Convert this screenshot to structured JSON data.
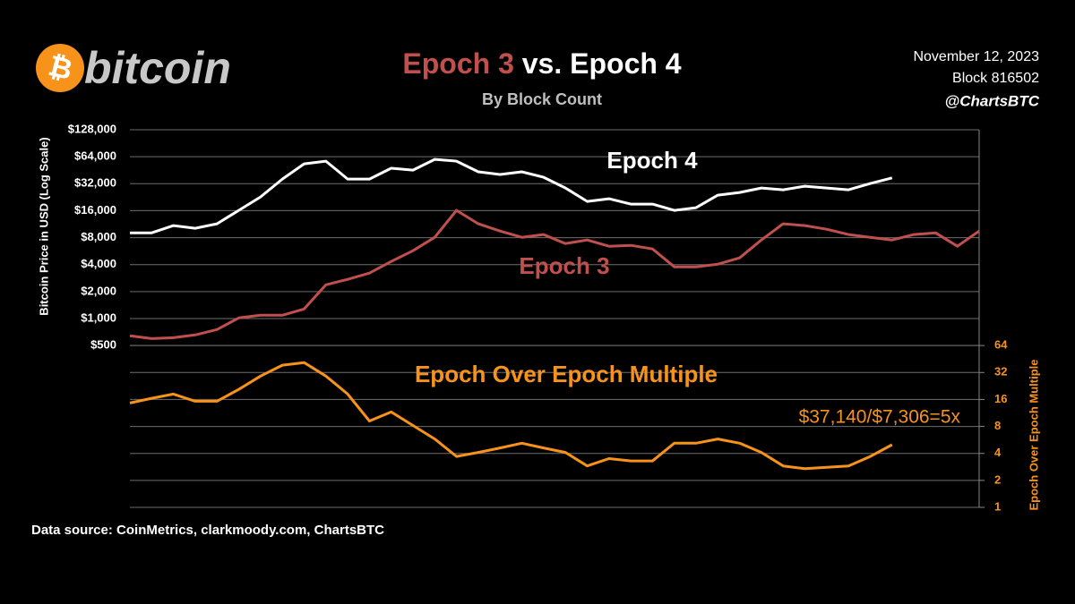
{
  "header": {
    "logo_symbol": "₿",
    "logo": "bitcoin",
    "date": "November 12, 2023",
    "block": "Block 816502",
    "handle": "@ChartsBTC",
    "source": "Data source: CoinMetrics, clarkmoody.com, ChartsBTC"
  },
  "chart_data": {
    "type": "line",
    "title_parts": [
      "Epoch 3",
      "vs.",
      "Epoch 4"
    ],
    "subtitle": "By Block Count",
    "ylabel": "Bitcoin Price in USD (Log Scale)",
    "y2label": "Epoch Over Epoch Multiple",
    "log_scale": true,
    "grid": true,
    "ylim": [
      7.8125,
      128000
    ],
    "yticks": [
      {
        "value": 128000,
        "label": "$128,000"
      },
      {
        "value": 64000,
        "label": "$64,000"
      },
      {
        "value": 32000,
        "label": "$32,000"
      },
      {
        "value": 16000,
        "label": "$16,000"
      },
      {
        "value": 8000,
        "label": "$8,000"
      },
      {
        "value": 4000,
        "label": "$4,000"
      },
      {
        "value": 2000,
        "label": "$2,000"
      },
      {
        "value": 1000,
        "label": "$1,000"
      },
      {
        "value": 500,
        "label": "$500"
      }
    ],
    "y2lim": [
      1,
      16384
    ],
    "y2ticks": [
      64,
      32,
      16,
      8,
      4,
      2,
      1
    ],
    "series": [
      {
        "name": "Epoch 4",
        "color": "#ffffff",
        "values": [
          9059,
          9059,
          10894,
          10167,
          11408,
          16120,
          22736,
          36056,
          53333,
          57143,
          36056,
          36056,
          47584,
          45390,
          59813,
          57143,
          43390,
          40506,
          43390,
          37758,
          28635,
          20285,
          21732,
          18935,
          18935,
          16120,
          17274,
          23836,
          25549,
          28635,
          27350,
          29977,
          28635,
          27350,
          32161,
          37140,
          null,
          null,
          null,
          null
        ]
      },
      {
        "name": "Epoch 3",
        "color": "#c0504d",
        "values": [
          641,
          598,
          612,
          656,
          753,
          1016,
          1089,
          1089,
          1279,
          2382,
          2735,
          3213,
          4333,
          5714,
          8071,
          16120,
          11408,
          9488,
          8071,
          8655,
          6874,
          7534,
          6413,
          6561,
          5984,
          3776,
          3776,
          4051,
          4753,
          7534,
          11408,
          10894,
          9930,
          8655,
          8071,
          7534,
          8655,
          9059,
          6413,
          9488
        ]
      },
      {
        "name": "Epoch Over Epoch Multiple",
        "color": "#f7931a",
        "axis": "y2",
        "values": [
          14.6,
          16.5,
          18.4,
          15.3,
          15.3,
          20.7,
          29.2,
          38.6,
          41.3,
          29.2,
          18.4,
          9.2,
          11.6,
          8.2,
          5.8,
          3.7,
          4.1,
          4.6,
          5.2,
          4.6,
          4.1,
          2.9,
          3.5,
          3.3,
          3.3,
          5.2,
          5.2,
          5.8,
          5.2,
          4.1,
          2.9,
          2.7,
          2.8,
          2.9,
          3.7,
          5.0,
          null,
          null,
          null,
          null
        ]
      }
    ],
    "annotation": "$37,140/$7,306=5x"
  }
}
